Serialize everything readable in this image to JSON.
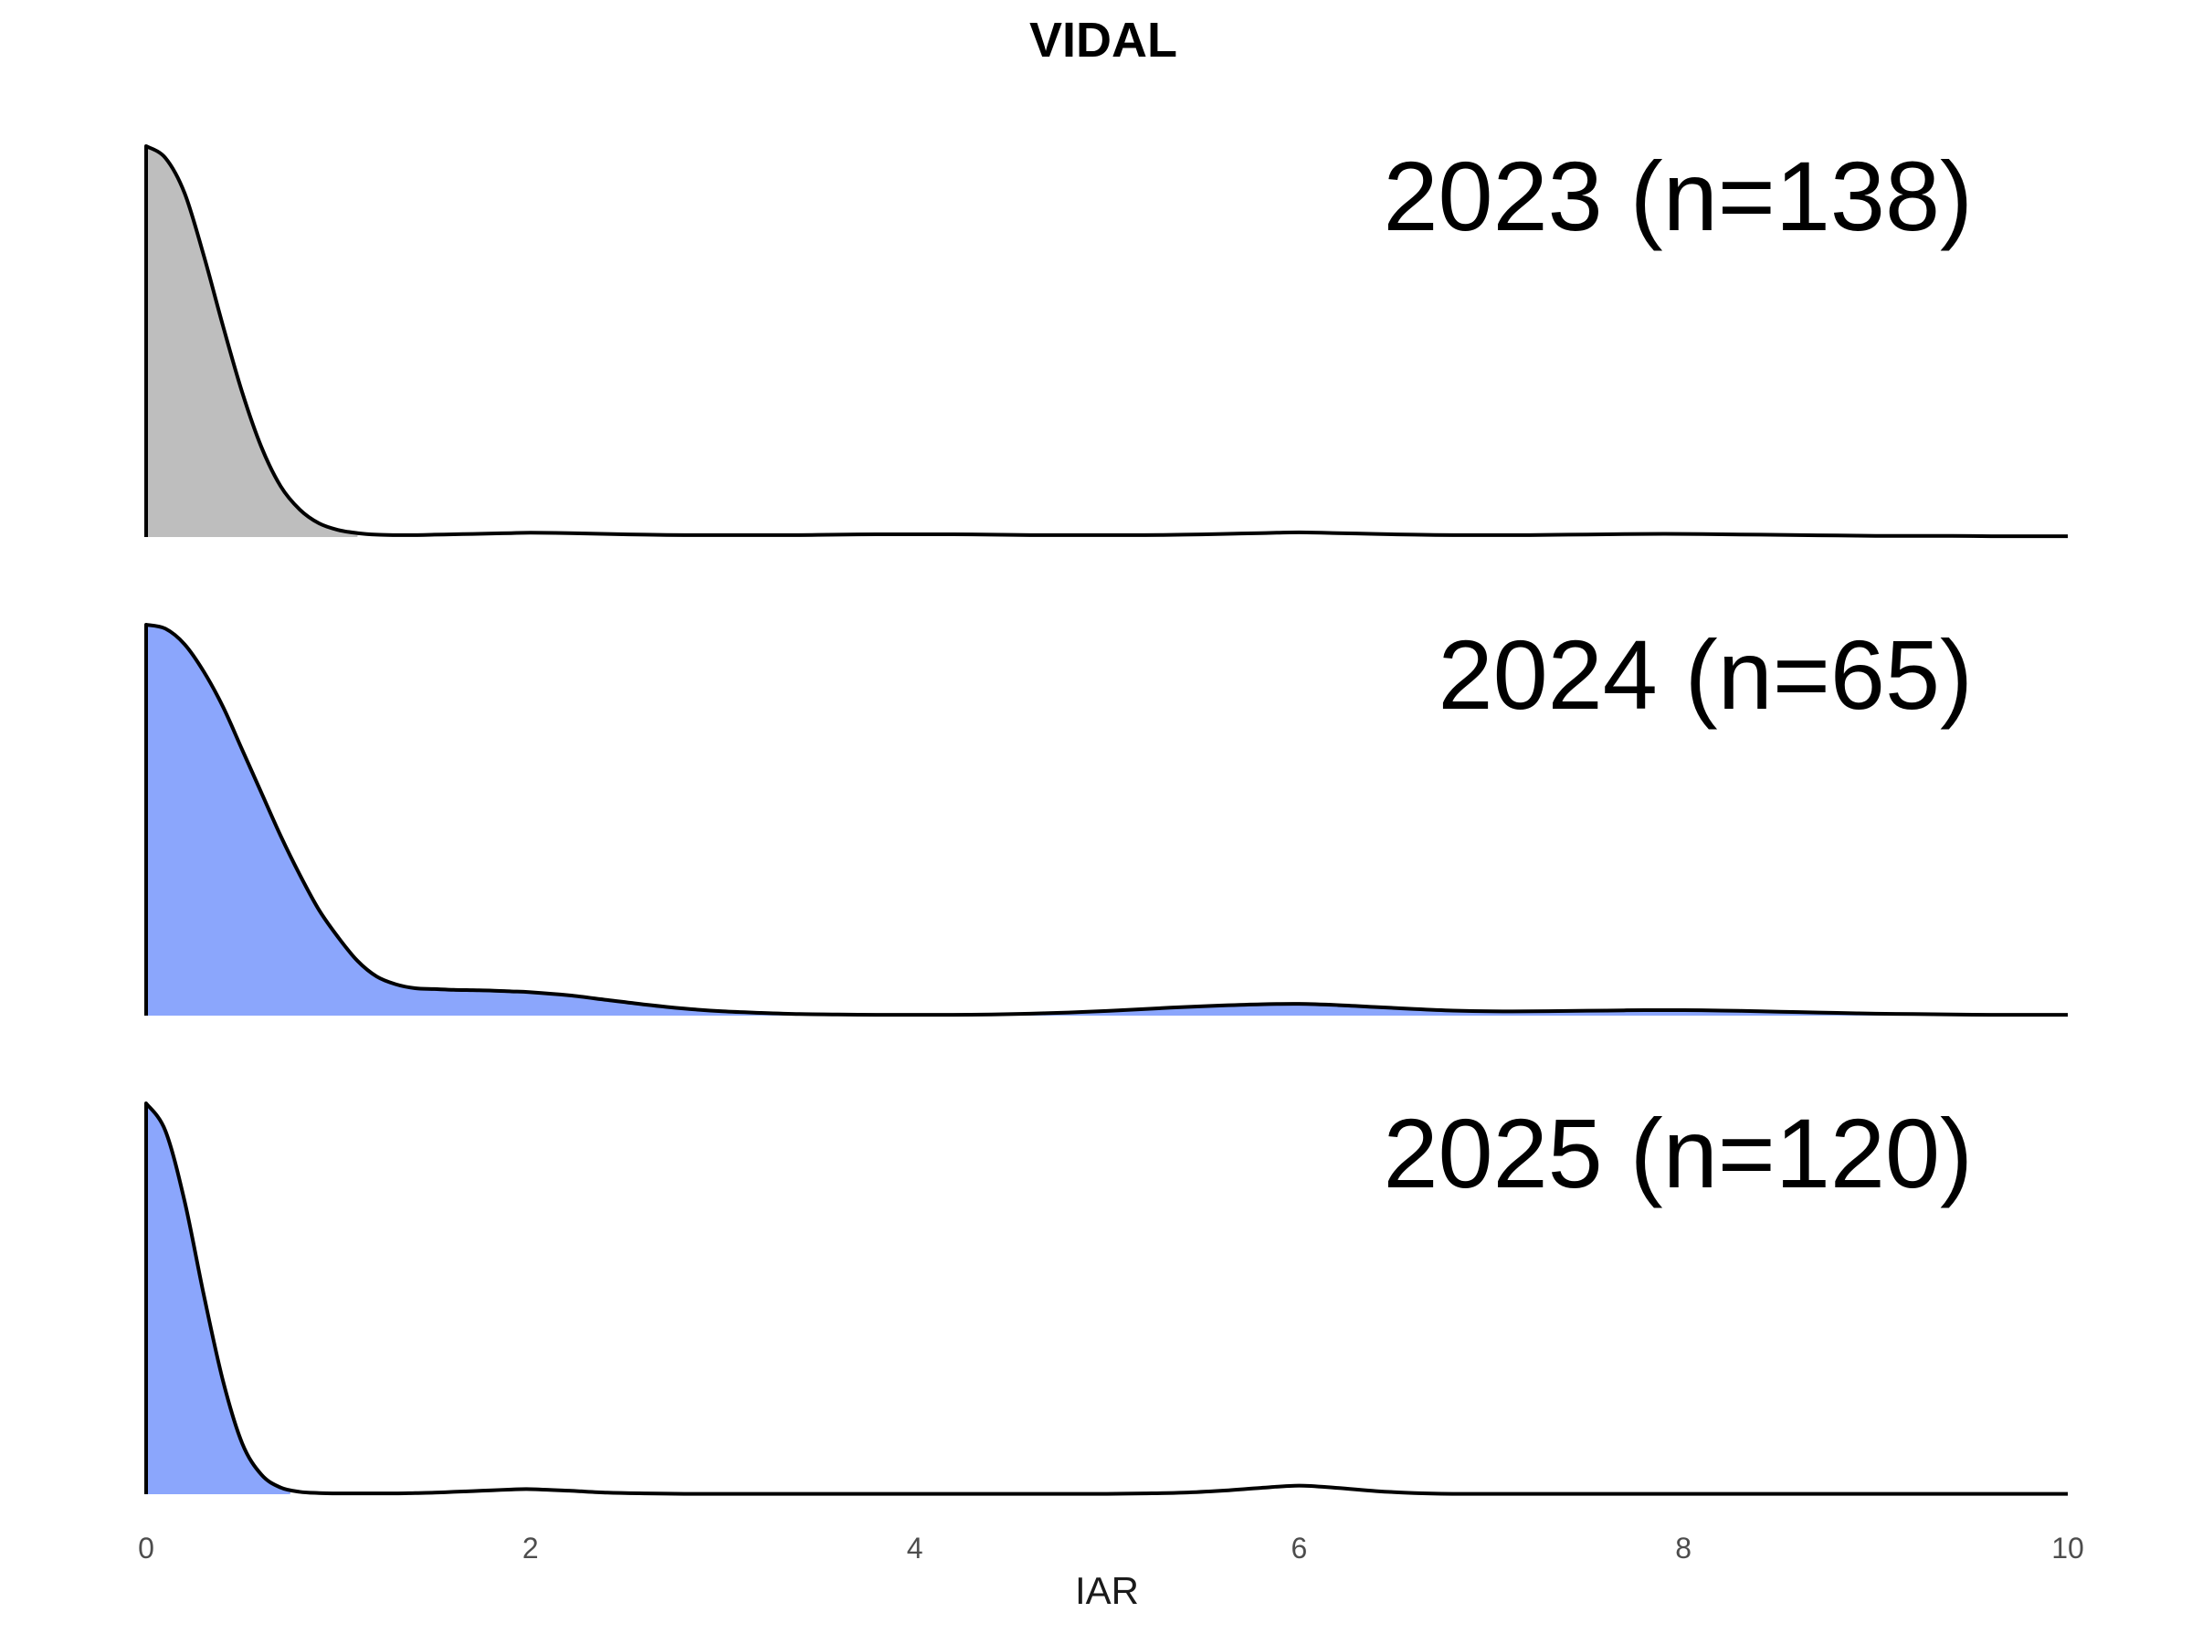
{
  "chart_data": {
    "type": "area",
    "subtype": "ridgeline-density",
    "title": "VIDAL",
    "xlabel": "IAR",
    "ylabel": "",
    "xlim": [
      0,
      10
    ],
    "x_ticks": [
      "0",
      "2",
      "4",
      "6",
      "8",
      "10"
    ],
    "x_tick_values": [
      0,
      2,
      4,
      6,
      8,
      10
    ],
    "grid": false,
    "legend": "none",
    "x": [
      0,
      0.1,
      0.2,
      0.3,
      0.4,
      0.5,
      0.6,
      0.7,
      0.8,
      0.9,
      1.0,
      1.1,
      1.2,
      1.3,
      1.4,
      1.5,
      1.6,
      1.7,
      1.8,
      1.9,
      2.0,
      2.2,
      2.4,
      2.6,
      2.8,
      3.0,
      3.2,
      3.4,
      3.6,
      3.8,
      4.0,
      4.2,
      4.4,
      4.6,
      4.8,
      5.0,
      5.2,
      5.4,
      5.6,
      5.8,
      6.0,
      6.2,
      6.4,
      6.6,
      6.8,
      7.0,
      7.2,
      7.4,
      7.6,
      7.8,
      8.0,
      8.2,
      8.4,
      8.6,
      8.8,
      9.0,
      9.2,
      9.4,
      9.6,
      9.8,
      10.0
    ],
    "series": [
      {
        "label": "2023 (n=138)",
        "fill": "#bebebe",
        "fill_until_x": 1.1,
        "values": [
          1.0,
          0.97,
          0.88,
          0.72,
          0.54,
          0.37,
          0.23,
          0.13,
          0.07,
          0.035,
          0.018,
          0.01,
          0.006,
          0.005,
          0.005,
          0.006,
          0.007,
          0.008,
          0.009,
          0.01,
          0.011,
          0.01,
          0.008,
          0.006,
          0.005,
          0.005,
          0.005,
          0.005,
          0.006,
          0.007,
          0.007,
          0.007,
          0.006,
          0.005,
          0.005,
          0.005,
          0.005,
          0.006,
          0.008,
          0.01,
          0.012,
          0.01,
          0.008,
          0.006,
          0.005,
          0.005,
          0.005,
          0.006,
          0.007,
          0.008,
          0.008,
          0.007,
          0.006,
          0.005,
          0.004,
          0.003,
          0.003,
          0.003,
          0.002,
          0.002,
          0.002
        ]
      },
      {
        "label": "2024 (n=65)",
        "fill": "#8ba6fc",
        "fill_until_x": 10,
        "values": [
          1.0,
          0.99,
          0.95,
          0.88,
          0.79,
          0.68,
          0.57,
          0.46,
          0.36,
          0.27,
          0.2,
          0.14,
          0.1,
          0.08,
          0.07,
          0.068,
          0.066,
          0.065,
          0.064,
          0.062,
          0.06,
          0.052,
          0.04,
          0.028,
          0.018,
          0.011,
          0.007,
          0.004,
          0.003,
          0.002,
          0.002,
          0.002,
          0.003,
          0.005,
          0.008,
          0.012,
          0.017,
          0.022,
          0.026,
          0.029,
          0.03,
          0.027,
          0.022,
          0.017,
          0.013,
          0.011,
          0.011,
          0.012,
          0.013,
          0.014,
          0.014,
          0.013,
          0.011,
          0.009,
          0.007,
          0.005,
          0.004,
          0.003,
          0.002,
          0.002,
          0.002
        ]
      },
      {
        "label": "2025 (n=120)",
        "fill": "#8ba6fc",
        "fill_until_x": 0.75,
        "values": [
          1.0,
          0.93,
          0.75,
          0.51,
          0.29,
          0.13,
          0.05,
          0.017,
          0.006,
          0.003,
          0.002,
          0.002,
          0.002,
          0.002,
          0.003,
          0.004,
          0.006,
          0.008,
          0.01,
          0.012,
          0.013,
          0.009,
          0.004,
          0.002,
          0.001,
          0.001,
          0.001,
          0.001,
          0.001,
          0.001,
          0.001,
          0.001,
          0.001,
          0.001,
          0.001,
          0.001,
          0.002,
          0.004,
          0.009,
          0.016,
          0.022,
          0.016,
          0.008,
          0.003,
          0.001,
          0.001,
          0.001,
          0.001,
          0.001,
          0.001,
          0.001,
          0.001,
          0.001,
          0.001,
          0.001,
          0.001,
          0.001,
          0.001,
          0.001,
          0.001,
          0.001
        ]
      }
    ]
  }
}
